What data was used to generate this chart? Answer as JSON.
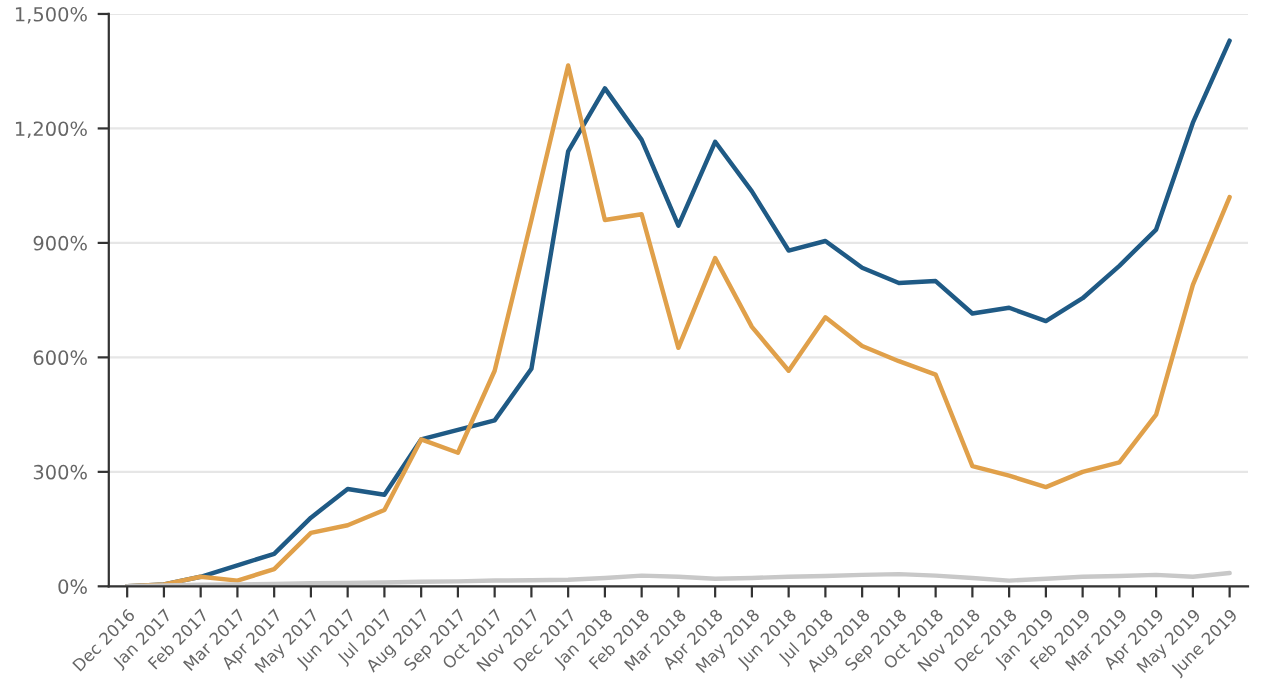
{
  "chart_data": {
    "type": "line",
    "categories": [
      "Dec 2016",
      "Jan 2017",
      "Feb 2017",
      "Mar 2017",
      "Apr 2017",
      "May 2017",
      "Jun 2017",
      "Jul 2017",
      "Aug 2017",
      "Sep 2017",
      "Oct 2017",
      "Nov 2017",
      "Dec 2017",
      "Jan 2018",
      "Feb 2018",
      "Mar 2018",
      "Apr 2018",
      "May 2018",
      "Jun 2018",
      "Jul 2018",
      "Aug 2018",
      "Sep 2018",
      "Oct 2018",
      "Nov 2018",
      "Dec 2018",
      "Jan 2019",
      "Feb 2019",
      "Mar 2019",
      "Apr 2019",
      "May 2019",
      "June 2019"
    ],
    "series": [
      {
        "color": "#1f5a85",
        "values": [
          0,
          5,
          25,
          55,
          85,
          180,
          255,
          240,
          385,
          410,
          435,
          570,
          1140,
          1305,
          1170,
          945,
          1165,
          1035,
          880,
          905,
          835,
          795,
          800,
          715,
          730,
          695,
          755,
          840,
          935,
          1215,
          1430
        ]
      },
      {
        "color": "#e0a04a",
        "values": [
          0,
          5,
          25,
          15,
          45,
          140,
          160,
          200,
          385,
          350,
          565,
          960,
          1365,
          960,
          975,
          625,
          860,
          680,
          565,
          705,
          630,
          590,
          555,
          315,
          290,
          260,
          300,
          325,
          450,
          790,
          1020
        ]
      },
      {
        "color": "#c8c8c8",
        "values": [
          0,
          2,
          4,
          5,
          6,
          8,
          9,
          10,
          12,
          13,
          15,
          16,
          17,
          22,
          28,
          25,
          20,
          22,
          25,
          27,
          30,
          32,
          28,
          22,
          15,
          20,
          25,
          27,
          30,
          25,
          35
        ]
      }
    ],
    "ylim": [
      0,
      1500
    ],
    "yticks": [
      {
        "value": 0,
        "label": "0%"
      },
      {
        "value": 300,
        "label": "300%"
      },
      {
        "value": 600,
        "label": "600%"
      },
      {
        "value": 900,
        "label": "900%"
      },
      {
        "value": 1200,
        "label": "1,200%"
      },
      {
        "value": 1500,
        "label": "1,500%"
      }
    ],
    "grid": "y",
    "legend": false,
    "marker": "none",
    "line_style": "solid"
  }
}
